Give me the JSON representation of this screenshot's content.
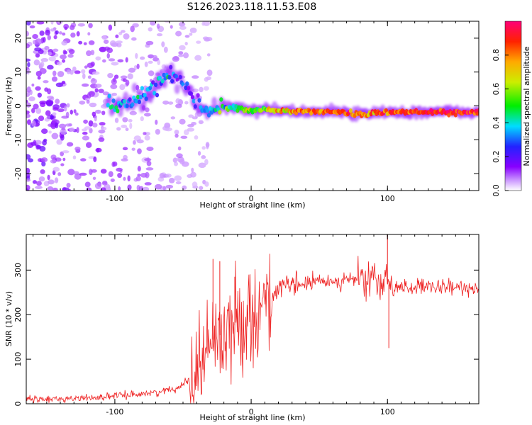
{
  "figure_title": "S126.2023.118.11.53.E08",
  "colors": {
    "background": "#ffffff",
    "axes": "#000000",
    "snr_line": "#ee2222"
  },
  "chart_data": [
    {
      "type": "heatmap",
      "title": "",
      "xlabel": "Height of straight line (km)",
      "ylabel": "Frequency (Hz)",
      "xlim": [
        -165,
        167
      ],
      "ylim": [
        -25,
        25
      ],
      "x_ticks": [
        -100,
        0,
        100
      ],
      "y_ticks": [
        -20,
        -10,
        0,
        10,
        20
      ],
      "colormap": "rainbow (white → violet → blue → cyan → green → yellow → orange → red → magenta)",
      "colorbar": {
        "label": "Normalized spectral amplitude",
        "range": [
          0,
          1
        ],
        "ticks": [
          0.0,
          0.2,
          0.4,
          0.6,
          0.8
        ]
      },
      "ridge": {
        "description": "Dominant spectral track (frequency vs height)",
        "points": [
          {
            "x": -105,
            "y": 0.5,
            "amp": 0.35
          },
          {
            "x": -98,
            "y": 0.5,
            "amp": 0.35
          },
          {
            "x": -90,
            "y": 1.2,
            "amp": 0.3
          },
          {
            "x": -80,
            "y": 3.0,
            "amp": 0.3
          },
          {
            "x": -70,
            "y": 6.0,
            "amp": 0.35
          },
          {
            "x": -60,
            "y": 9.0,
            "amp": 0.3
          },
          {
            "x": -52,
            "y": 8.0,
            "amp": 0.2
          },
          {
            "x": -42,
            "y": 2.0,
            "amp": 0.2
          },
          {
            "x": -32,
            "y": -2.0,
            "amp": 0.3
          },
          {
            "x": -22,
            "y": -0.5,
            "amp": 0.45
          },
          {
            "x": -10,
            "y": -0.5,
            "amp": 0.5
          },
          {
            "x": 0,
            "y": -1.5,
            "amp": 0.55
          },
          {
            "x": 10,
            "y": -1.0,
            "amp": 0.6
          },
          {
            "x": 25,
            "y": -1.5,
            "amp": 0.7
          },
          {
            "x": 45,
            "y": -1.7,
            "amp": 0.8
          },
          {
            "x": 65,
            "y": -1.7,
            "amp": 0.85
          },
          {
            "x": 80,
            "y": -2.5,
            "amp": 0.8
          },
          {
            "x": 92,
            "y": -2.0,
            "amp": 0.8
          },
          {
            "x": 100,
            "y": -1.8,
            "amp": 0.85
          },
          {
            "x": 120,
            "y": -1.8,
            "amp": 0.85
          },
          {
            "x": 140,
            "y": -1.8,
            "amp": 0.9
          },
          {
            "x": 167,
            "y": -1.8,
            "amp": 0.9
          }
        ]
      }
    },
    {
      "type": "line",
      "title": "",
      "xlabel": "Height of straight line (km)",
      "ylabel": "SNR (10 * v/v)",
      "xlim": [
        -165,
        167
      ],
      "ylim": [
        0,
        380
      ],
      "x_ticks": [
        -100,
        0,
        100
      ],
      "y_ticks": [
        0,
        100,
        200,
        300
      ],
      "series": [
        {
          "color": "#ee2222",
          "x": [
            -165,
            -150,
            -130,
            -110,
            -90,
            -70,
            -55,
            -45,
            -40,
            -35,
            -30,
            -25,
            -20,
            -15,
            -10,
            -5,
            0,
            5,
            10,
            15,
            20,
            25,
            30,
            40,
            50,
            60,
            70,
            80,
            90,
            95,
            100,
            105,
            110,
            120,
            130,
            140,
            150,
            160,
            167
          ],
          "y": [
            10,
            10,
            12,
            15,
            20,
            25,
            35,
            55,
            80,
            110,
            140,
            150,
            160,
            170,
            180,
            190,
            200,
            215,
            230,
            245,
            255,
            260,
            265,
            270,
            275,
            275,
            278,
            280,
            275,
            270,
            268,
            265,
            262,
            262,
            260,
            260,
            260,
            260,
            262
          ]
        }
      ],
      "notable_spikes": [
        {
          "x": -28,
          "y": 325
        },
        {
          "x": -23,
          "y": 320
        },
        {
          "x": -12,
          "y": 285
        },
        {
          "x": 100,
          "y": 380
        },
        {
          "x": 101,
          "y": 125
        }
      ]
    }
  ]
}
